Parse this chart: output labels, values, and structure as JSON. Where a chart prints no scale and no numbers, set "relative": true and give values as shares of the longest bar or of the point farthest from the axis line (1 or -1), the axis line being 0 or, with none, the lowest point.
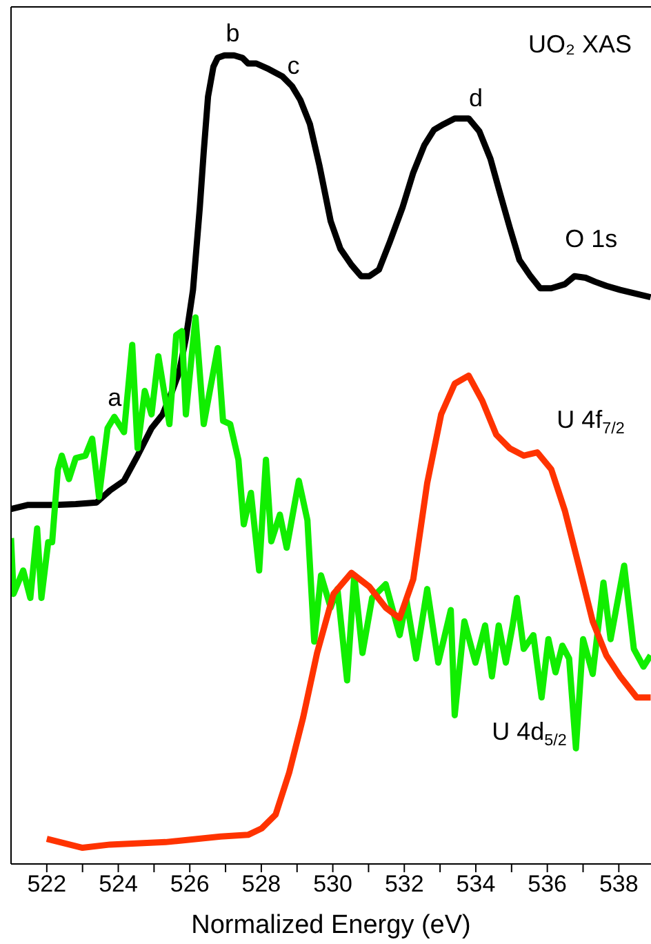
{
  "chart_data": {
    "type": "line",
    "title": "UO₂ XAS",
    "xlabel": "Normalized Energy (eV)",
    "relative": true,
    "xlim": [
      521,
      538.9
    ],
    "xticks": [
      522,
      {
        "value": 523,
        "label": null
      },
      524,
      {
        "value": 525,
        "label": null
      },
      526,
      {
        "value": 527,
        "label": null
      },
      528,
      {
        "value": 529,
        "label": null
      },
      530,
      {
        "value": 531,
        "label": null
      },
      532,
      {
        "value": 533,
        "label": null
      },
      534,
      {
        "value": 535,
        "label": null
      },
      536,
      {
        "value": 537,
        "label": null
      },
      538
    ],
    "line_style": "solid",
    "marker": "none",
    "annotations": [
      {
        "text": "a",
        "x": 523.9,
        "y": 0.55
      },
      {
        "text": "b",
        "x": 527.2,
        "y": 1.0
      },
      {
        "text": "c",
        "x": 528.9,
        "y": 0.96
      },
      {
        "text": "d",
        "x": 534.0,
        "y": 0.92
      }
    ],
    "series": [
      {
        "name": "O 1s",
        "color": "#000000",
        "x": [
          521.0,
          521.46,
          522.23,
          522.81,
          523.39,
          523.77,
          524.16,
          524.54,
          524.93,
          525.24,
          525.51,
          525.7,
          525.89,
          526.09,
          526.28,
          526.39,
          526.51,
          526.66,
          526.78,
          526.97,
          527.24,
          527.47,
          527.63,
          527.86,
          528.21,
          528.59,
          528.86,
          529.09,
          529.36,
          529.63,
          529.94,
          530.21,
          530.52,
          530.79,
          531.02,
          531.29,
          531.6,
          531.95,
          532.25,
          532.56,
          532.83,
          533.1,
          533.41,
          533.8,
          534.1,
          534.41,
          534.68,
          534.95,
          535.22,
          535.53,
          535.8,
          536.11,
          536.49,
          536.76,
          537.07,
          537.34,
          537.65,
          538.04,
          538.42,
          538.89
        ],
        "values": [
          0.439,
          0.444,
          0.444,
          0.445,
          0.447,
          0.462,
          0.474,
          0.505,
          0.539,
          0.556,
          0.585,
          0.608,
          0.65,
          0.71,
          0.812,
          0.881,
          0.949,
          0.986,
          0.997,
          1.0,
          1.0,
          0.997,
          0.99,
          0.99,
          0.983,
          0.974,
          0.962,
          0.945,
          0.915,
          0.863,
          0.795,
          0.761,
          0.741,
          0.727,
          0.727,
          0.735,
          0.77,
          0.812,
          0.855,
          0.889,
          0.908,
          0.915,
          0.922,
          0.922,
          0.906,
          0.872,
          0.829,
          0.787,
          0.747,
          0.727,
          0.712,
          0.712,
          0.717,
          0.727,
          0.725,
          0.72,
          0.715,
          0.71,
          0.706,
          0.701
        ]
      },
      {
        "name": "U 4d$_{5/2}$",
        "color": "#11ee00",
        "x": [
          521.0,
          521.07,
          521.34,
          521.54,
          521.73,
          521.85,
          522.04,
          522.15,
          522.31,
          522.42,
          522.62,
          522.81,
          523.08,
          523.27,
          523.46,
          523.7,
          523.89,
          524.16,
          524.39,
          524.54,
          524.74,
          524.93,
          525.12,
          525.43,
          525.62,
          525.78,
          525.89,
          526.16,
          526.39,
          526.78,
          526.93,
          527.13,
          527.36,
          527.51,
          527.71,
          527.94,
          528.13,
          528.28,
          528.52,
          528.71,
          529.05,
          529.29,
          529.48,
          529.67,
          529.94,
          530.13,
          530.4,
          530.6,
          530.83,
          531.1,
          531.48,
          531.87,
          532.06,
          532.33,
          532.64,
          532.95,
          533.3,
          533.41,
          533.68,
          533.99,
          534.26,
          534.45,
          534.64,
          534.84,
          535.03,
          535.15,
          535.34,
          535.61,
          535.84,
          536.03,
          536.23,
          536.42,
          536.61,
          536.8,
          537.0,
          537.27,
          537.57,
          537.77,
          538.15,
          538.42,
          538.69,
          538.89
        ],
        "values": [
          0.403,
          0.334,
          0.363,
          0.329,
          0.415,
          0.329,
          0.398,
          0.398,
          0.488,
          0.505,
          0.476,
          0.502,
          0.505,
          0.526,
          0.454,
          0.539,
          0.553,
          0.534,
          0.642,
          0.514,
          0.585,
          0.556,
          0.628,
          0.544,
          0.654,
          0.659,
          0.556,
          0.676,
          0.544,
          0.638,
          0.548,
          0.544,
          0.5,
          0.42,
          0.459,
          0.363,
          0.5,
          0.399,
          0.432,
          0.391,
          0.474,
          0.425,
          0.275,
          0.357,
          0.317,
          0.34,
          0.227,
          0.357,
          0.261,
          0.329,
          0.346,
          0.283,
          0.326,
          0.254,
          0.34,
          0.249,
          0.314,
          0.184,
          0.3,
          0.249,
          0.295,
          0.232,
          0.295,
          0.249,
          0.295,
          0.329,
          0.266,
          0.283,
          0.206,
          0.278,
          0.237,
          0.27,
          0.254,
          0.143,
          0.278,
          0.235,
          0.348,
          0.278,
          0.369,
          0.266,
          0.244,
          0.258
        ]
      },
      {
        "name": "U 4f$_{7/2}$",
        "color": "#ff3300",
        "x": [
          522.0,
          523.0,
          523.77,
          525.32,
          526.86,
          527.63,
          528.01,
          528.4,
          528.78,
          529.17,
          529.56,
          530.02,
          530.52,
          531.02,
          531.48,
          531.87,
          532.25,
          532.64,
          533.03,
          533.41,
          533.8,
          534.18,
          534.57,
          534.95,
          535.34,
          535.72,
          536.11,
          536.49,
          536.88,
          537.27,
          537.65,
          538.04,
          538.5,
          538.89
        ],
        "values": [
          0.031,
          0.02,
          0.024,
          0.027,
          0.034,
          0.036,
          0.044,
          0.061,
          0.113,
          0.181,
          0.261,
          0.334,
          0.36,
          0.343,
          0.317,
          0.304,
          0.352,
          0.471,
          0.556,
          0.594,
          0.604,
          0.573,
          0.531,
          0.514,
          0.505,
          0.509,
          0.488,
          0.437,
          0.369,
          0.3,
          0.258,
          0.232,
          0.206,
          0.206
        ]
      }
    ]
  }
}
